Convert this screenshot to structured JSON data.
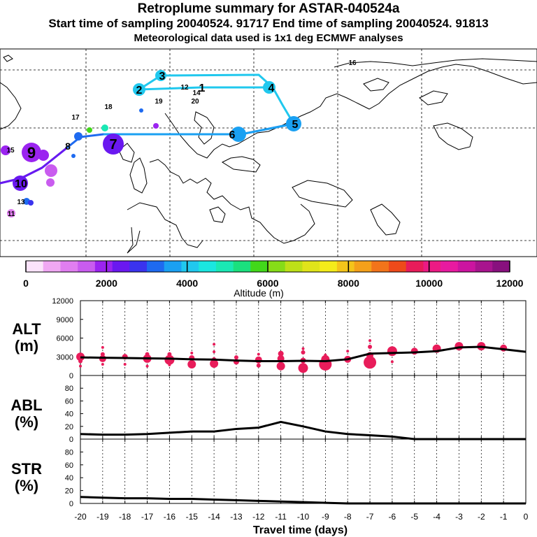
{
  "header": {
    "title": "Retroplume summary for ASTAR-040524a",
    "line2": "Start time of sampling 20040524. 91717     End time of sampling 20040524. 91813",
    "line3": "Meteorological data used is 1x1 deg ECMWF analyses"
  },
  "map": {
    "labels": [
      {
        "text": "1",
        "color": "#1a1a1a"
      },
      {
        "text": "2",
        "color": "#1a1a1a"
      },
      {
        "text": "3",
        "color": "#1a1a1a"
      },
      {
        "text": "4",
        "color": "#1a1a1a"
      },
      {
        "text": "5",
        "color": "#1a1a1a"
      },
      {
        "text": "6",
        "color": "#1a1a1a"
      },
      {
        "text": "7",
        "color": "#1a1a1a"
      },
      {
        "text": "8",
        "color": "#1a1a1a"
      },
      {
        "text": "9",
        "color": "#1a1a1a"
      },
      {
        "text": "10",
        "color": "#1a1a1a"
      },
      {
        "text": "11",
        "color": "#1a1a1a"
      },
      {
        "text": "12",
        "color": "#1a1a1a"
      },
      {
        "text": "13",
        "color": "#1a1a1a"
      },
      {
        "text": "14",
        "color": "#1a1a1a"
      },
      {
        "text": "15",
        "color": "#1a1a1a"
      },
      {
        "text": "16",
        "color": "#1a1a1a"
      },
      {
        "text": "17",
        "color": "#1a1a1a"
      },
      {
        "text": "18",
        "color": "#1a1a1a"
      },
      {
        "text": "19",
        "color": "#1a1a1a"
      },
      {
        "text": "20",
        "color": "#1a1a1a"
      }
    ]
  },
  "colorbar": {
    "colors": [
      "#fbe3fb",
      "#f0a8f3",
      "#e07ef0",
      "#c95cef",
      "#9b24f0",
      "#6a18f0",
      "#3a33ee",
      "#1e6af0",
      "#1aa0f2",
      "#20c8ee",
      "#1ae6e0",
      "#1ae8b4",
      "#1ae07e",
      "#42d81a",
      "#86dc18",
      "#bde018",
      "#e0e41a",
      "#f4ec1a",
      "#f4c41a",
      "#f4a01a",
      "#f2741a",
      "#ee4a1a",
      "#e81c5a",
      "#ec1a84",
      "#e81aa0",
      "#cc14a0",
      "#a8148e",
      "#88107e"
    ],
    "ticks": [
      "0",
      "2000",
      "4000",
      "6000",
      "8000",
      "10000",
      "12000"
    ],
    "label": "Altitude (m)"
  },
  "chart_data": [
    {
      "type": "line",
      "title": "ALT",
      "ylabel": "ALT (m)",
      "ylabel_line1": "ALT",
      "ylabel_line2": "(m)",
      "ylim": [
        0,
        12000
      ],
      "yticks": [
        "0",
        "3000",
        "6000",
        "9000",
        "12000"
      ],
      "x": [
        -20,
        -19,
        -18,
        -17,
        -16,
        -15,
        -14,
        -13,
        -12,
        -11,
        -10,
        -9,
        -8,
        -7,
        -6,
        -5,
        -4,
        -3,
        -2,
        -1,
        0
      ],
      "series": [
        {
          "name": "mean altitude",
          "values": [
            2900,
            2850,
            2800,
            2750,
            2700,
            2600,
            2550,
            2400,
            2300,
            2300,
            2350,
            2300,
            2600,
            3500,
            3600,
            3700,
            3900,
            4500,
            4600,
            4200,
            3800
          ]
        }
      ],
      "points": [
        {
          "day": -20,
          "alt": 3000,
          "size": 6
        },
        {
          "day": -20,
          "alt": 2300,
          "size": 3
        },
        {
          "day": -20,
          "alt": 1500,
          "size": 2
        },
        {
          "day": -19,
          "alt": 3400,
          "size": 3
        },
        {
          "day": -19,
          "alt": 2700,
          "size": 5
        },
        {
          "day": -19,
          "alt": 4500,
          "size": 2
        },
        {
          "day": -19,
          "alt": 1800,
          "size": 2
        },
        {
          "day": -18,
          "alt": 3000,
          "size": 4
        },
        {
          "day": -18,
          "alt": 1800,
          "size": 2
        },
        {
          "day": -17,
          "alt": 2700,
          "size": 6
        },
        {
          "day": -17,
          "alt": 3400,
          "size": 3
        },
        {
          "day": -17,
          "alt": 1500,
          "size": 2
        },
        {
          "day": -16,
          "alt": 2500,
          "size": 7
        },
        {
          "day": -16,
          "alt": 3400,
          "size": 3
        },
        {
          "day": -16,
          "alt": 1700,
          "size": 2
        },
        {
          "day": -15,
          "alt": 1800,
          "size": 6
        },
        {
          "day": -15,
          "alt": 2800,
          "size": 4
        },
        {
          "day": -15,
          "alt": 3600,
          "size": 2
        },
        {
          "day": -14,
          "alt": 1900,
          "size": 6
        },
        {
          "day": -14,
          "alt": 2600,
          "size": 3
        },
        {
          "day": -14,
          "alt": 5000,
          "size": 2
        },
        {
          "day": -14,
          "alt": 3800,
          "size": 2
        },
        {
          "day": -13,
          "alt": 2200,
          "size": 4
        },
        {
          "day": -13,
          "alt": 2900,
          "size": 3
        },
        {
          "day": -12,
          "alt": 2500,
          "size": 5
        },
        {
          "day": -12,
          "alt": 1600,
          "size": 3
        },
        {
          "day": -12,
          "alt": 3400,
          "size": 2
        },
        {
          "day": -11,
          "alt": 1500,
          "size": 6
        },
        {
          "day": -11,
          "alt": 2700,
          "size": 5
        },
        {
          "day": -11,
          "alt": 3500,
          "size": 4
        },
        {
          "day": -10,
          "alt": 1200,
          "size": 7
        },
        {
          "day": -10,
          "alt": 2400,
          "size": 4
        },
        {
          "day": -10,
          "alt": 3700,
          "size": 3
        },
        {
          "day": -10,
          "alt": 4300,
          "size": 2
        },
        {
          "day": -9,
          "alt": 1800,
          "size": 9
        },
        {
          "day": -9,
          "alt": 2600,
          "size": 6
        },
        {
          "day": -9,
          "alt": 3300,
          "size": 2
        },
        {
          "day": -8,
          "alt": 2600,
          "size": 5
        },
        {
          "day": -8,
          "alt": 3900,
          "size": 2
        },
        {
          "day": -7,
          "alt": 2100,
          "size": 9
        },
        {
          "day": -7,
          "alt": 3200,
          "size": 5
        },
        {
          "day": -7,
          "alt": 4600,
          "size": 3
        },
        {
          "day": -7,
          "alt": 5600,
          "size": 2
        },
        {
          "day": -6,
          "alt": 3900,
          "size": 7
        },
        {
          "day": -6,
          "alt": 2200,
          "size": 2
        },
        {
          "day": -5,
          "alt": 3900,
          "size": 5
        },
        {
          "day": -4,
          "alt": 4300,
          "size": 6
        },
        {
          "day": -3,
          "alt": 4700,
          "size": 6
        },
        {
          "day": -2,
          "alt": 4700,
          "size": 6
        },
        {
          "day": -1,
          "alt": 4400,
          "size": 5
        }
      ]
    },
    {
      "type": "line",
      "title": "ABL",
      "ylabel": "ABL (%)",
      "ylabel_line1": "ABL",
      "ylabel_line2": "(%)",
      "ylim": [
        0,
        100
      ],
      "yticks": [
        "0",
        "20",
        "40",
        "60",
        "80"
      ],
      "x": [
        -20,
        -19,
        -18,
        -17,
        -16,
        -15,
        -14,
        -13,
        -12,
        -11,
        -10,
        -9,
        -8,
        -7,
        -6,
        -5,
        -4,
        -3,
        -2,
        -1,
        0
      ],
      "series": [
        {
          "name": "ABL fraction",
          "values": [
            8,
            7,
            7,
            8,
            10,
            12,
            12,
            16,
            18,
            27,
            20,
            12,
            8,
            6,
            4,
            0,
            0,
            0,
            0,
            0,
            0
          ]
        }
      ]
    },
    {
      "type": "line",
      "title": "STR",
      "ylabel": "STR (%)",
      "ylabel_line1": "STR",
      "ylabel_line2": "(%)",
      "ylim": [
        0,
        100
      ],
      "yticks": [
        "0",
        "20",
        "40",
        "60",
        "80"
      ],
      "xlabel": "Travel time (days)",
      "xticks": [
        "-20",
        "-19",
        "-18",
        "-17",
        "-16",
        "-15",
        "-14",
        "-13",
        "-12",
        "-11",
        "-10",
        "-9",
        "-8",
        "-7",
        "-6",
        "-5",
        "-4",
        "-3",
        "-2",
        "-1",
        "0"
      ],
      "x": [
        -20,
        -19,
        -18,
        -17,
        -16,
        -15,
        -14,
        -13,
        -12,
        -11,
        -10,
        -9,
        -8,
        -7,
        -6,
        -5,
        -4,
        -3,
        -2,
        -1,
        0
      ],
      "series": [
        {
          "name": "STR fraction",
          "values": [
            10,
            9,
            8,
            8,
            7,
            7,
            6,
            5,
            4,
            3,
            2,
            1,
            0,
            0,
            0,
            0,
            0,
            0,
            0,
            0,
            0
          ]
        }
      ]
    }
  ]
}
